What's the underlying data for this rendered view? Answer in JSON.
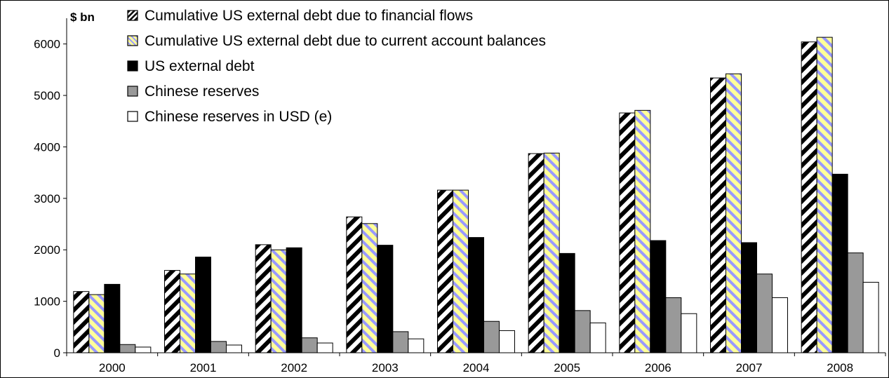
{
  "chart_data": {
    "type": "bar",
    "unit_label": "$ bn",
    "categories": [
      "2000",
      "2001",
      "2002",
      "2003",
      "2004",
      "2005",
      "2006",
      "2007",
      "2008"
    ],
    "ylim": [
      0,
      6500
    ],
    "y_ticks": [
      0,
      1000,
      2000,
      3000,
      4000,
      5000,
      6000
    ],
    "grid": false,
    "legend_position": "top-left",
    "series": [
      {
        "name": "Cumulative US external debt due to financial flows",
        "pattern": "black-white-diagonal-stripes",
        "values": [
          1190,
          1600,
          2100,
          2640,
          3160,
          3870,
          4660,
          5340,
          6040
        ]
      },
      {
        "name": "Cumulative US external debt due to current account balances",
        "pattern": "blue-yellow-diagonal-stripes",
        "values": [
          1130,
          1530,
          2000,
          2510,
          3160,
          3880,
          4710,
          5420,
          6130
        ]
      },
      {
        "name": "US external debt",
        "color": "#000000",
        "values": [
          1330,
          1860,
          2040,
          2090,
          2240,
          1930,
          2180,
          2140,
          3470
        ]
      },
      {
        "name": "Chinese reserves",
        "color": "#999999",
        "values": [
          160,
          220,
          290,
          410,
          610,
          820,
          1070,
          1530,
          1940
        ]
      },
      {
        "name": "Chinese reserves in USD (e)",
        "color": "#ffffff",
        "values": [
          110,
          150,
          190,
          270,
          430,
          580,
          760,
          1070,
          1370
        ]
      }
    ]
  }
}
